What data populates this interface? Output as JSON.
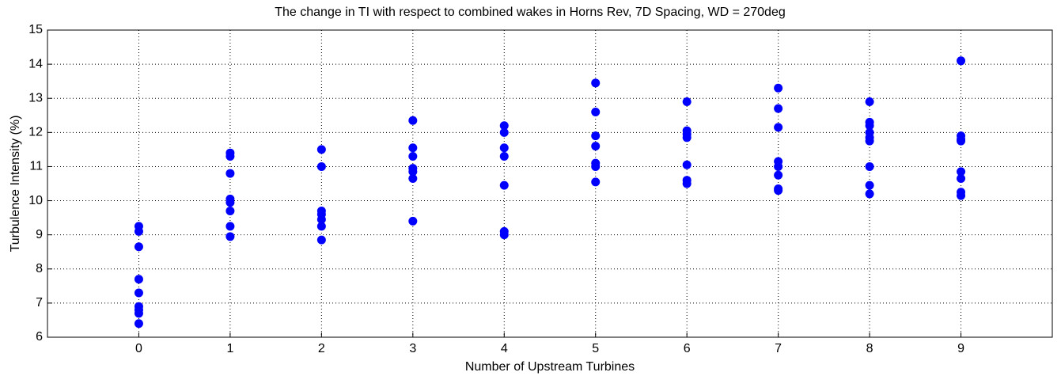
{
  "chart_data": {
    "type": "scatter",
    "title": "The change in TI with respect to combined wakes in Horns Rev, 7D Spacing, WD = 270deg",
    "xlabel": "Number of Upstream Turbines",
    "ylabel": "Turbulence Intensity (%)",
    "color": "#0000ff",
    "grid": true,
    "xlim": [
      -1,
      10
    ],
    "xticks": [
      0,
      1,
      2,
      3,
      4,
      5,
      6,
      7,
      8,
      9
    ],
    "ylim": [
      6,
      15
    ],
    "yticks": [
      6,
      7,
      8,
      9,
      10,
      11,
      12,
      13,
      14,
      15
    ],
    "x": [
      0,
      0,
      0,
      0,
      0,
      0,
      0,
      0,
      0,
      1,
      1,
      1,
      1,
      1,
      1,
      1,
      1,
      2,
      2,
      2,
      2,
      2,
      2,
      2,
      3,
      3,
      3,
      3,
      3,
      3,
      3,
      4,
      4,
      4,
      4,
      4,
      4,
      4,
      5,
      5,
      5,
      5,
      5,
      5,
      5,
      6,
      6,
      6,
      6,
      6,
      6,
      6,
      7,
      7,
      7,
      7,
      7,
      7,
      7,
      7,
      8,
      8,
      8,
      8,
      8,
      8,
      8,
      8,
      8,
      9,
      9,
      9,
      9,
      9,
      9,
      9,
      9
    ],
    "values": [
      9.25,
      9.1,
      8.65,
      7.7,
      7.3,
      6.9,
      6.8,
      6.7,
      6.4,
      11.4,
      11.3,
      10.8,
      10.05,
      9.95,
      9.7,
      9.25,
      8.95,
      11.5,
      11.0,
      9.7,
      9.6,
      9.45,
      9.25,
      8.85,
      12.35,
      11.55,
      11.3,
      10.95,
      10.85,
      10.65,
      9.4,
      12.2,
      12.0,
      11.55,
      11.3,
      10.45,
      9.1,
      9.0,
      13.45,
      12.6,
      11.9,
      11.6,
      11.1,
      11.0,
      10.55,
      12.9,
      12.05,
      11.95,
      11.85,
      11.05,
      10.6,
      10.5,
      13.3,
      12.7,
      12.15,
      11.15,
      11.0,
      10.75,
      10.35,
      10.3,
      12.9,
      12.3,
      12.2,
      12.0,
      11.85,
      11.75,
      11.0,
      10.45,
      10.2,
      14.1,
      11.9,
      11.8,
      11.75,
      10.85,
      10.65,
      10.25,
      10.15
    ]
  }
}
